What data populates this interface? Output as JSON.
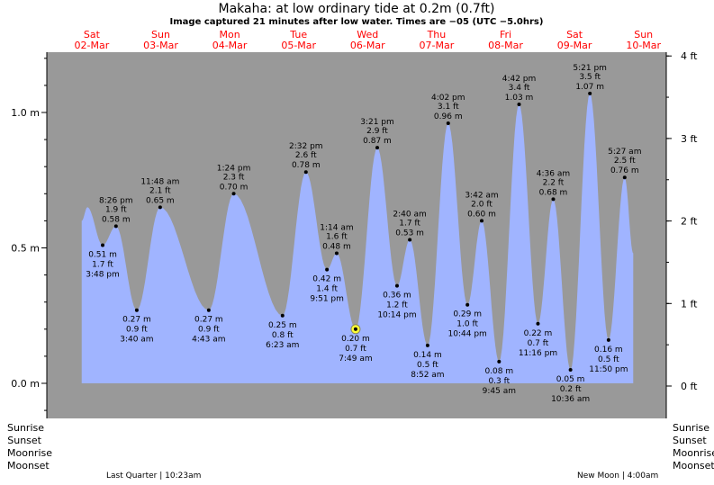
{
  "chart_data": {
    "type": "area",
    "title": "Makaha: at low  ordinary tide at 0.2m (0.7ft)",
    "subtitle": "Image captured 21 minutes after low water. Times are −05 (UTC −5.0hrs)",
    "days": [
      {
        "name": "Sat",
        "date": "02-Mar"
      },
      {
        "name": "Sun",
        "date": "03-Mar"
      },
      {
        "name": "Mon",
        "date": "04-Mar"
      },
      {
        "name": "Tue",
        "date": "05-Mar"
      },
      {
        "name": "Wed",
        "date": "06-Mar"
      },
      {
        "name": "Thu",
        "date": "07-Mar"
      },
      {
        "name": "Fri",
        "date": "08-Mar"
      },
      {
        "name": "Sat",
        "date": "09-Mar"
      },
      {
        "name": "Sun",
        "date": "10-Mar"
      }
    ],
    "left_axis": {
      "unit": "m",
      "ticks": [
        "1.0 m",
        "0.5 m",
        "0.0 m"
      ],
      "values": [
        1.0,
        0.5,
        0.0
      ],
      "ylim": [
        -0.13,
        1.22
      ]
    },
    "right_axis": {
      "unit": "ft",
      "ticks": [
        "4 ft",
        "3 ft",
        "2 ft",
        "1 ft",
        "0 ft"
      ],
      "values": [
        4,
        3,
        2,
        1,
        0
      ]
    },
    "extremes": [
      {
        "day": 0,
        "time": "3:48 pm",
        "m": 0.51,
        "ft": "1.7 ft",
        "type": "low"
      },
      {
        "day": 0,
        "time": "8:26 pm",
        "m": 0.58,
        "ft": "1.9 ft",
        "type": "high"
      },
      {
        "day": 1,
        "time": "3:40 am",
        "m": 0.27,
        "ft": "0.9 ft",
        "type": "low"
      },
      {
        "day": 1,
        "time": "11:48 am",
        "m": 0.65,
        "ft": "2.1 ft",
        "type": "high"
      },
      {
        "day": 2,
        "time": "4:43 am",
        "m": 0.27,
        "ft": "0.9 ft",
        "type": "low"
      },
      {
        "day": 2,
        "time": "1:24 pm",
        "m": 0.7,
        "ft": "2.3 ft",
        "type": "high"
      },
      {
        "day": 3,
        "time": "6:23 am",
        "m": 0.25,
        "ft": "0.8 ft",
        "type": "low"
      },
      {
        "day": 3,
        "time": "2:32 pm",
        "m": 0.78,
        "ft": "2.6 ft",
        "type": "high"
      },
      {
        "day": 3,
        "time": "9:51 pm",
        "m": 0.42,
        "ft": "1.4 ft",
        "type": "low"
      },
      {
        "day": 4,
        "time": "1:14 am",
        "m": 0.48,
        "ft": "1.6 ft",
        "type": "high"
      },
      {
        "day": 4,
        "time": "7:49 am",
        "m": 0.2,
        "ft": "0.7 ft",
        "type": "low",
        "current": true
      },
      {
        "day": 4,
        "time": "3:21 pm",
        "m": 0.87,
        "ft": "2.9 ft",
        "type": "high"
      },
      {
        "day": 4,
        "time": "10:14 pm",
        "m": 0.36,
        "ft": "1.2 ft",
        "type": "low"
      },
      {
        "day": 5,
        "time": "2:40 am",
        "m": 0.53,
        "ft": "1.7 ft",
        "type": "high"
      },
      {
        "day": 5,
        "time": "8:52 am",
        "m": 0.14,
        "ft": "0.5 ft",
        "type": "low"
      },
      {
        "day": 5,
        "time": "4:02 pm",
        "m": 0.96,
        "ft": "3.1 ft",
        "type": "high"
      },
      {
        "day": 5,
        "time": "10:44 pm",
        "m": 0.29,
        "ft": "1.0 ft",
        "type": "low"
      },
      {
        "day": 6,
        "time": "3:42 am",
        "m": 0.6,
        "ft": "2.0 ft",
        "type": "high"
      },
      {
        "day": 6,
        "time": "9:45 am",
        "m": 0.08,
        "ft": "0.3 ft",
        "type": "low"
      },
      {
        "day": 6,
        "time": "4:42 pm",
        "m": 1.03,
        "ft": "3.4 ft",
        "type": "high"
      },
      {
        "day": 6,
        "time": "11:16 pm",
        "m": 0.22,
        "ft": "0.7 ft",
        "type": "low"
      },
      {
        "day": 7,
        "time": "4:36 am",
        "m": 0.68,
        "ft": "2.2 ft",
        "type": "high"
      },
      {
        "day": 7,
        "time": "10:36 am",
        "m": 0.05,
        "ft": "0.2 ft",
        "type": "low"
      },
      {
        "day": 7,
        "time": "5:21 pm",
        "m": 1.07,
        "ft": "3.5 ft",
        "type": "high"
      },
      {
        "day": 7,
        "time": "11:50 pm",
        "m": 0.16,
        "ft": "0.5 ft",
        "type": "low"
      },
      {
        "day": 8,
        "time": "5:27 am",
        "m": 0.76,
        "ft": "2.5 ft",
        "type": "high"
      }
    ],
    "unlabeled_curve_points": [
      {
        "day": 0,
        "time": "8:30 am",
        "m": 0.6
      },
      {
        "day": 0,
        "time": "10:30 am",
        "m": 0.65
      },
      {
        "day": 8,
        "time": "8:25 am",
        "m": 0.48
      }
    ],
    "colors": {
      "water": "#a0b4ff",
      "background": "#999999",
      "day_labels": "#ff0000",
      "current_marker": "#ffff33"
    }
  },
  "rows": {
    "sunrise": "Sunrise",
    "sunset": "Sunset",
    "moonrise": "Moonrise",
    "moonset": "Moonset"
  },
  "moon": {
    "last_quarter": "Last Quarter | 10:23am",
    "new_moon": "New Moon | 4:00am"
  }
}
